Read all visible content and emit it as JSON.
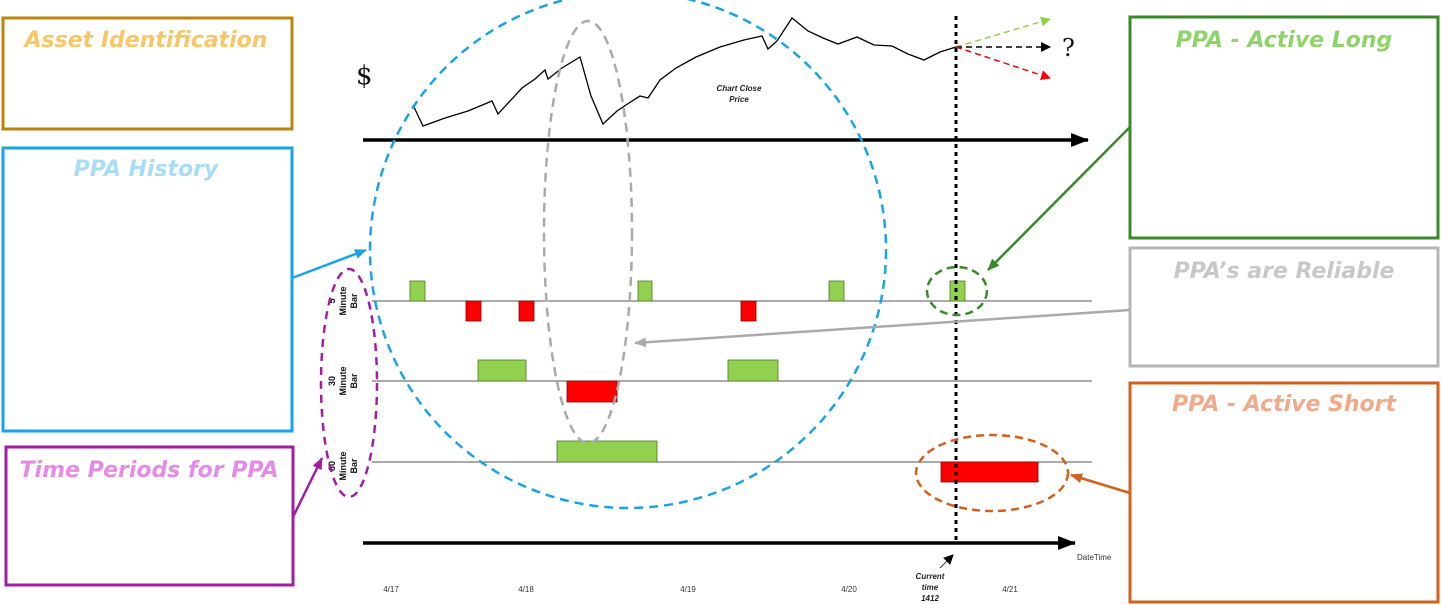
{
  "boxes": {
    "asset_identification": {
      "title": "Asset Identification",
      "border": "#b8860b",
      "text": "#f7c766"
    },
    "ppa_history": {
      "title": "PPA History",
      "border": "#1aa3e8",
      "text": "#a9dcf6"
    },
    "time_periods": {
      "title": "Time Periods for PPA",
      "border": "#a21ea2",
      "text": "#e58be5"
    },
    "active_long": {
      "title": "PPA - Active Long",
      "border": "#3a8a2a",
      "text": "#8fd46a"
    },
    "reliable": {
      "title": "PPA’s are Reliable",
      "border": "#b5b5b5",
      "text": "#c8c8c8"
    },
    "active_short": {
      "title": "PPA - Active Short",
      "border": "#d4601c",
      "text": "#f2a98a"
    }
  },
  "chart": {
    "dollar": "$",
    "question": "?",
    "price_label_line1": "Chart Close",
    "price_label_line2": "Price",
    "datetime_label": "DateTime",
    "current_time_line1": "Current",
    "current_time_line2": "time",
    "current_time_line3": "1412",
    "rows": [
      {
        "line1": "5",
        "line2": "Minute",
        "line3": "Bar"
      },
      {
        "line1": "30",
        "line2": "Minute",
        "line3": "Bar"
      },
      {
        "line1": "60",
        "line2": "Minute",
        "line3": "Bar"
      }
    ],
    "dates": [
      "4/17",
      "4/18",
      "4/19",
      "4/20",
      "4/21"
    ]
  },
  "colors": {
    "green": "#92d050",
    "red": "#ff0000",
    "blue_dash": "#1aa3e8",
    "gray_dash": "#aaaaaa",
    "purple_dash": "#a21ea2",
    "green_dash": "#3a8a2a",
    "orange_dash": "#d4601c"
  }
}
